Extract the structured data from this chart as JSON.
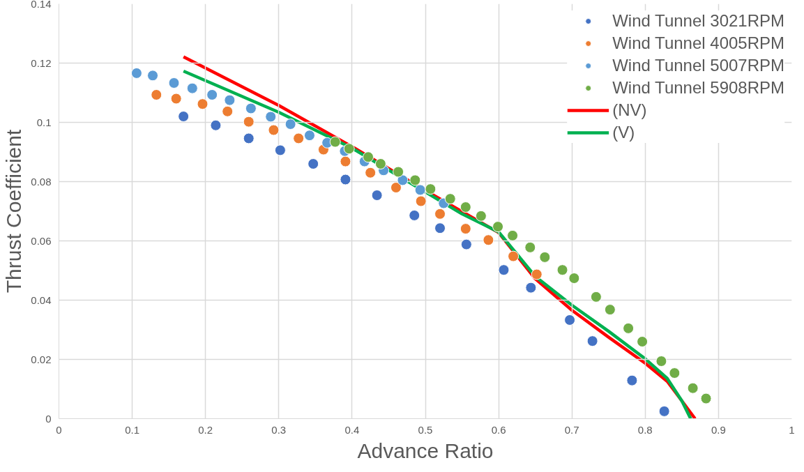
{
  "chart_data": {
    "type": "scatter",
    "xlabel": "Advance Ratio",
    "ylabel": "Thrust Coefficient",
    "xlim": [
      0,
      1
    ],
    "ylim": [
      0,
      0.14
    ],
    "xticks": [
      0,
      0.1,
      0.2,
      0.3,
      0.4,
      0.5,
      0.6,
      0.7,
      0.8,
      0.9,
      1
    ],
    "yticks": [
      0,
      0.02,
      0.04,
      0.06,
      0.08,
      0.1,
      0.12,
      0.14
    ],
    "grid": true,
    "legend": "top right",
    "series": [
      {
        "name": "Wind Tunnel 3021RPM",
        "marker": "circle",
        "color": "#4472c4",
        "x": [
          0.17,
          0.214,
          0.259,
          0.302,
          0.347,
          0.391,
          0.434,
          0.485,
          0.52,
          0.556,
          0.607,
          0.644,
          0.697,
          0.728,
          0.782,
          0.826
        ],
        "values": [
          0.102,
          0.099,
          0.0946,
          0.0906,
          0.086,
          0.0807,
          0.0754,
          0.0686,
          0.0643,
          0.0588,
          0.0502,
          0.0442,
          0.0333,
          0.0262,
          0.0129,
          0.0025
        ]
      },
      {
        "name": "Wind Tunnel 4005RPM",
        "marker": "circle",
        "color": "#ed7d31",
        "x": [
          0.133,
          0.16,
          0.196,
          0.23,
          0.259,
          0.293,
          0.327,
          0.361,
          0.391,
          0.425,
          0.46,
          0.494,
          0.52,
          0.555,
          0.586,
          0.62,
          0.652
        ],
        "values": [
          0.1093,
          0.108,
          0.1062,
          0.1037,
          0.1002,
          0.0974,
          0.0946,
          0.0908,
          0.0868,
          0.083,
          0.078,
          0.0734,
          0.0691,
          0.0641,
          0.0603,
          0.0548,
          0.0487
        ]
      },
      {
        "name": "Wind Tunnel 5007RPM",
        "marker": "circle",
        "color": "#5b9bd5",
        "x": [
          0.106,
          0.128,
          0.157,
          0.182,
          0.209,
          0.233,
          0.262,
          0.289,
          0.316,
          0.342,
          0.366,
          0.39,
          0.417,
          0.443,
          0.469,
          0.493,
          0.525
        ],
        "values": [
          0.1166,
          0.1158,
          0.1133,
          0.1115,
          0.1093,
          0.1075,
          0.1047,
          0.1019,
          0.0994,
          0.0956,
          0.0931,
          0.0903,
          0.0868,
          0.0838,
          0.0805,
          0.0772,
          0.0727
        ]
      },
      {
        "name": "Wind Tunnel 5908RPM",
        "marker": "circle",
        "color": "#70ad47",
        "x": [
          0.377,
          0.396,
          0.422,
          0.439,
          0.463,
          0.486,
          0.507,
          0.534,
          0.555,
          0.576,
          0.599,
          0.619,
          0.643,
          0.663,
          0.687,
          0.703,
          0.733,
          0.752,
          0.777,
          0.796,
          0.822,
          0.84,
          0.865,
          0.883
        ],
        "values": [
          0.0934,
          0.0911,
          0.0883,
          0.086,
          0.0833,
          0.0805,
          0.0775,
          0.0742,
          0.0714,
          0.0684,
          0.0648,
          0.0618,
          0.0578,
          0.0545,
          0.0502,
          0.0474,
          0.0411,
          0.0368,
          0.0305,
          0.026,
          0.0194,
          0.0154,
          0.0103,
          0.0068
        ]
      },
      {
        "name": "(NV)",
        "type": "line",
        "line_style": "solid",
        "color": "#ff0000",
        "x": [
          0.17,
          0.3,
          0.4,
          0.5,
          0.55,
          0.6,
          0.65,
          0.7,
          0.75,
          0.8,
          0.83,
          0.85,
          0.868
        ],
        "values": [
          0.1221,
          0.1057,
          0.0918,
          0.077,
          0.0699,
          0.0628,
          0.0472,
          0.0366,
          0.0275,
          0.0187,
          0.0126,
          0.006,
          0
        ]
      },
      {
        "name": "(V)",
        "type": "line",
        "line_style": "solid",
        "color": "#00b050",
        "x": [
          0.17,
          0.3,
          0.4,
          0.5,
          0.55,
          0.6,
          0.65,
          0.7,
          0.75,
          0.8,
          0.83,
          0.85,
          0.862
        ],
        "values": [
          0.1173,
          0.1034,
          0.0913,
          0.0765,
          0.0691,
          0.063,
          0.048,
          0.0383,
          0.0295,
          0.0202,
          0.0136,
          0.006,
          0
        ]
      }
    ]
  }
}
